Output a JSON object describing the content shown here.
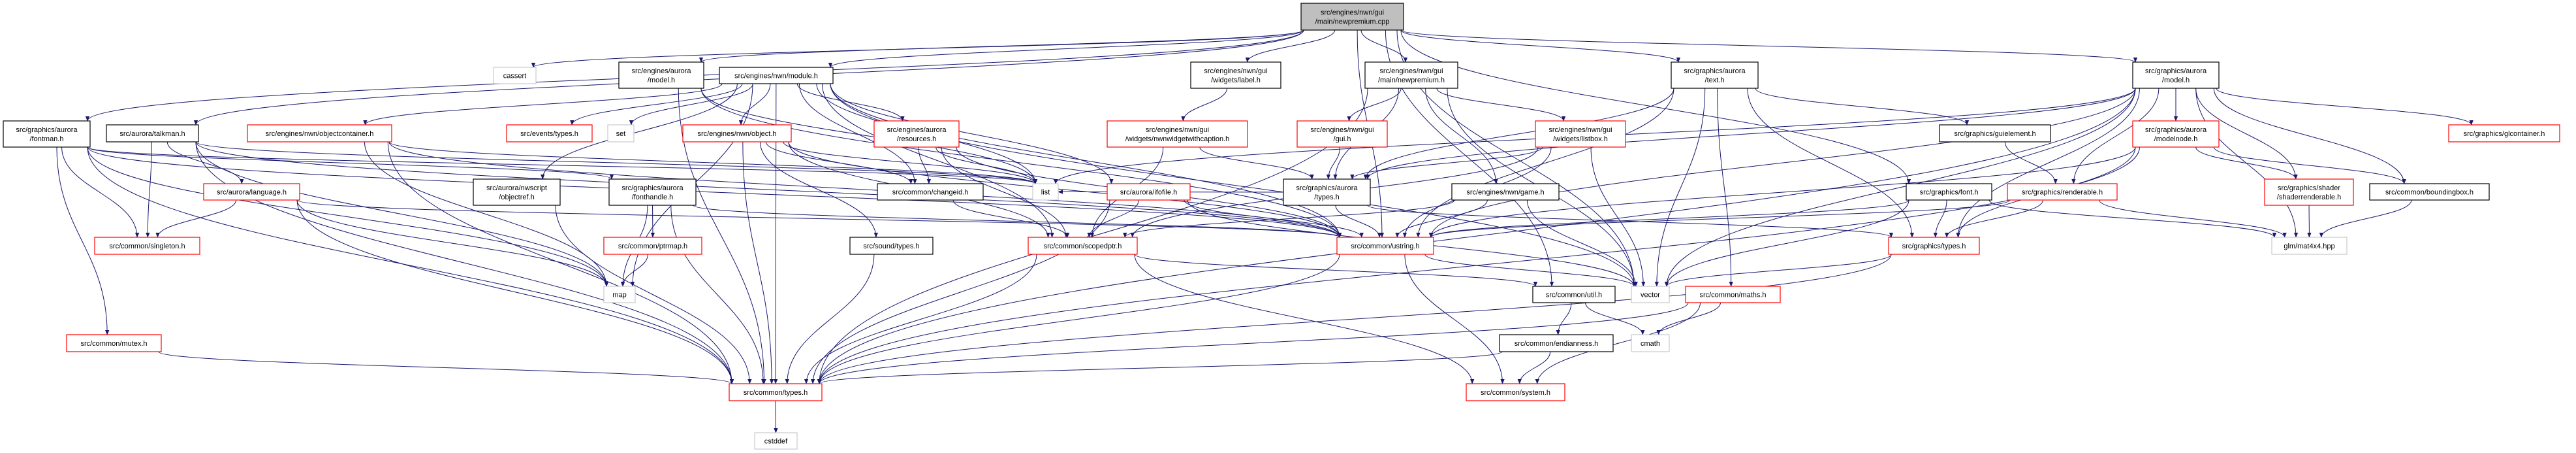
{
  "colors": {
    "edge": "#191970",
    "root_fill": "#bfbfbf",
    "normal_border": "#000000",
    "truncated_border": "#ff0000",
    "external_border": "#bfbfbf"
  },
  "nodes": [
    {
      "id": "cpp",
      "lines": [
        "src/engines/nwn/gui",
        "/main/newpremium.cpp"
      ],
      "kind": "root"
    },
    {
      "id": "cassert",
      "lines": [
        "cassert"
      ],
      "kind": "external"
    },
    {
      "id": "eng_model",
      "lines": [
        "src/engines/aurora",
        "/model.h"
      ],
      "kind": "normal"
    },
    {
      "id": "module",
      "lines": [
        "src/engines/nwn/module.h"
      ],
      "kind": "normal"
    },
    {
      "id": "label",
      "lines": [
        "src/engines/nwn/gui",
        "/widgets/label.h"
      ],
      "kind": "normal"
    },
    {
      "id": "newpremium_h",
      "lines": [
        "src/engines/nwn/gui",
        "/main/newpremium.h"
      ],
      "kind": "normal"
    },
    {
      "id": "text",
      "lines": [
        "src/graphics/aurora",
        "/text.h"
      ],
      "kind": "normal"
    },
    {
      "id": "gmodel",
      "lines": [
        "src/graphics/aurora",
        "/model.h"
      ],
      "kind": "normal"
    },
    {
      "id": "fontman",
      "lines": [
        "src/graphics/aurora",
        "/fontman.h"
      ],
      "kind": "normal"
    },
    {
      "id": "talkman",
      "lines": [
        "src/aurora/talkman.h"
      ],
      "kind": "normal"
    },
    {
      "id": "objectcontainer",
      "lines": [
        "src/engines/nwn/objectcontainer.h"
      ],
      "kind": "truncated"
    },
    {
      "id": "events_types",
      "lines": [
        "src/events/types.h"
      ],
      "kind": "truncated"
    },
    {
      "id": "set",
      "lines": [
        "set"
      ],
      "kind": "external"
    },
    {
      "id": "object",
      "lines": [
        "src/engines/nwn/object.h"
      ],
      "kind": "truncated"
    },
    {
      "id": "resources",
      "lines": [
        "src/engines/aurora",
        "/resources.h"
      ],
      "kind": "truncated"
    },
    {
      "id": "nwnwidget",
      "lines": [
        "src/engines/nwn/gui",
        "/widgets/nwnwidgetwithcaption.h"
      ],
      "kind": "truncated"
    },
    {
      "id": "gui",
      "lines": [
        "src/engines/nwn/gui",
        "/gui.h"
      ],
      "kind": "truncated"
    },
    {
      "id": "listbox",
      "lines": [
        "src/engines/nwn/gui",
        "/widgets/listbox.h"
      ],
      "kind": "truncated"
    },
    {
      "id": "guielement",
      "lines": [
        "src/graphics/guielement.h"
      ],
      "kind": "normal"
    },
    {
      "id": "modelnode",
      "lines": [
        "src/graphics/aurora",
        "/modelnode.h"
      ],
      "kind": "truncated"
    },
    {
      "id": "glcontainer",
      "lines": [
        "src/graphics/glcontainer.h"
      ],
      "kind": "truncated"
    },
    {
      "id": "language",
      "lines": [
        "src/aurora/language.h"
      ],
      "kind": "truncated"
    },
    {
      "id": "objectref",
      "lines": [
        "src/aurora/nwscript",
        "/objectref.h"
      ],
      "kind": "normal"
    },
    {
      "id": "fonthandle",
      "lines": [
        "src/graphics/aurora",
        "/fonthandle.h"
      ],
      "kind": "normal"
    },
    {
      "id": "changeid",
      "lines": [
        "src/common/changeid.h"
      ],
      "kind": "normal"
    },
    {
      "id": "list",
      "lines": [
        "list"
      ],
      "kind": "external"
    },
    {
      "id": "ifofile",
      "lines": [
        "src/aurora/ifofile.h"
      ],
      "kind": "truncated"
    },
    {
      "id": "gtypes",
      "lines": [
        "src/graphics/aurora",
        "/types.h"
      ],
      "kind": "normal"
    },
    {
      "id": "game",
      "lines": [
        "src/engines/nwn/game.h"
      ],
      "kind": "normal"
    },
    {
      "id": "font",
      "lines": [
        "src/graphics/font.h"
      ],
      "kind": "normal"
    },
    {
      "id": "renderable",
      "lines": [
        "src/graphics/renderable.h"
      ],
      "kind": "truncated"
    },
    {
      "id": "shaderrenderable",
      "lines": [
        "src/graphics/shader",
        "/shaderrenderable.h"
      ],
      "kind": "truncated"
    },
    {
      "id": "boundingbox",
      "lines": [
        "src/common/boundingbox.h"
      ],
      "kind": "normal"
    },
    {
      "id": "singleton",
      "lines": [
        "src/common/singleton.h"
      ],
      "kind": "truncated"
    },
    {
      "id": "ptrmap",
      "lines": [
        "src/common/ptrmap.h"
      ],
      "kind": "truncated"
    },
    {
      "id": "sound_types",
      "lines": [
        "src/sound/types.h"
      ],
      "kind": "normal"
    },
    {
      "id": "scopedptr",
      "lines": [
        "src/common/scopedptr.h"
      ],
      "kind": "truncated"
    },
    {
      "id": "ustring",
      "lines": [
        "src/common/ustring.h"
      ],
      "kind": "truncated"
    },
    {
      "id": "graphics_types",
      "lines": [
        "src/graphics/types.h"
      ],
      "kind": "truncated"
    },
    {
      "id": "mat4x4",
      "lines": [
        "glm/mat4x4.hpp"
      ],
      "kind": "external"
    },
    {
      "id": "map",
      "lines": [
        "map"
      ],
      "kind": "external"
    },
    {
      "id": "util",
      "lines": [
        "src/common/util.h"
      ],
      "kind": "normal"
    },
    {
      "id": "vector",
      "lines": [
        "vector"
      ],
      "kind": "external"
    },
    {
      "id": "maths",
      "lines": [
        "src/common/maths.h"
      ],
      "kind": "truncated"
    },
    {
      "id": "mutex",
      "lines": [
        "src/common/mutex.h"
      ],
      "kind": "truncated"
    },
    {
      "id": "endianness",
      "lines": [
        "src/common/endianness.h"
      ],
      "kind": "normal"
    },
    {
      "id": "cmath",
      "lines": [
        "cmath"
      ],
      "kind": "external"
    },
    {
      "id": "types",
      "lines": [
        "src/common/types.h"
      ],
      "kind": "truncated"
    },
    {
      "id": "system",
      "lines": [
        "src/common/system.h"
      ],
      "kind": "truncated"
    },
    {
      "id": "cstddef",
      "lines": [
        "cstddef"
      ],
      "kind": "external"
    }
  ],
  "edges": [
    [
      "cpp",
      "cassert"
    ],
    [
      "cpp",
      "eng_model"
    ],
    [
      "cpp",
      "fontman"
    ],
    [
      "cpp",
      "talkman"
    ],
    [
      "cpp",
      "module"
    ],
    [
      "cpp",
      "label"
    ],
    [
      "cpp",
      "newpremium_h"
    ],
    [
      "cpp",
      "text"
    ],
    [
      "cpp",
      "gmodel"
    ],
    [
      "cpp",
      "font"
    ],
    [
      "cpp",
      "ustring"
    ],
    [
      "cpp",
      "util"
    ],
    [
      "cpp",
      "vector"
    ],
    [
      "eng_model",
      "list"
    ],
    [
      "eng_model",
      "ustring"
    ],
    [
      "eng_model",
      "types"
    ],
    [
      "module",
      "object"
    ],
    [
      "module",
      "resources"
    ],
    [
      "module",
      "changeid"
    ],
    [
      "module",
      "list"
    ],
    [
      "module",
      "scopedptr"
    ],
    [
      "module",
      "ifofile"
    ],
    [
      "module",
      "ustring"
    ],
    [
      "module",
      "objectcontainer"
    ],
    [
      "module",
      "events_types"
    ],
    [
      "module",
      "set"
    ],
    [
      "module",
      "objectref"
    ],
    [
      "module",
      "map"
    ],
    [
      "module",
      "vector"
    ],
    [
      "module",
      "types"
    ],
    [
      "fontman",
      "singleton"
    ],
    [
      "fontman",
      "mutex"
    ],
    [
      "fontman",
      "map"
    ],
    [
      "fontman",
      "types"
    ],
    [
      "fontman",
      "ustring"
    ],
    [
      "fontman",
      "fonthandle"
    ],
    [
      "fontman",
      "list"
    ],
    [
      "talkman",
      "singleton"
    ],
    [
      "talkman",
      "language"
    ],
    [
      "talkman",
      "types"
    ],
    [
      "talkman",
      "map"
    ],
    [
      "talkman",
      "ustring"
    ],
    [
      "talkman",
      "list"
    ],
    [
      "language",
      "singleton"
    ],
    [
      "language",
      "map"
    ],
    [
      "language",
      "types"
    ],
    [
      "language",
      "ustring"
    ],
    [
      "objectcontainer",
      "map"
    ],
    [
      "objectcontainer",
      "list"
    ],
    [
      "objectcontainer",
      "types"
    ],
    [
      "objectcontainer",
      "ustring"
    ],
    [
      "objectref",
      "types"
    ],
    [
      "fonthandle",
      "ptrmap"
    ],
    [
      "fonthandle",
      "map"
    ],
    [
      "fonthandle",
      "types"
    ],
    [
      "fonthandle",
      "ustring"
    ],
    [
      "mutex",
      "types"
    ],
    [
      "object",
      "list"
    ],
    [
      "object",
      "sound_types"
    ],
    [
      "object",
      "scopedptr"
    ],
    [
      "object",
      "types"
    ],
    [
      "object",
      "ustring"
    ],
    [
      "object",
      "changeid"
    ],
    [
      "resources",
      "changeid"
    ],
    [
      "resources",
      "list"
    ],
    [
      "resources",
      "scopedptr"
    ],
    [
      "resources",
      "ustring"
    ],
    [
      "changeid",
      "scopedptr"
    ],
    [
      "ifofile",
      "scopedptr"
    ],
    [
      "ifofile",
      "types"
    ],
    [
      "ifofile",
      "ustring"
    ],
    [
      "ifofile",
      "vector"
    ],
    [
      "label",
      "nwnwidget"
    ],
    [
      "nwnwidget",
      "gtypes"
    ],
    [
      "nwnwidget",
      "scopedptr"
    ],
    [
      "newpremium_h",
      "gui"
    ],
    [
      "newpremium_h",
      "listbox"
    ],
    [
      "newpremium_h",
      "gtypes"
    ],
    [
      "newpremium_h",
      "game"
    ],
    [
      "newpremium_h",
      "vector"
    ],
    [
      "newpremium_h",
      "types"
    ],
    [
      "gui",
      "gtypes"
    ],
    [
      "listbox",
      "gtypes"
    ],
    [
      "listbox",
      "vector"
    ],
    [
      "listbox",
      "ustring"
    ],
    [
      "listbox",
      "scopedptr"
    ],
    [
      "game",
      "ustring"
    ],
    [
      "game",
      "vector"
    ],
    [
      "game",
      "scopedptr"
    ],
    [
      "gtypes",
      "ustring"
    ],
    [
      "gtypes",
      "graphics_types"
    ],
    [
      "gtypes",
      "list"
    ],
    [
      "text",
      "gtypes"
    ],
    [
      "text",
      "ustring"
    ],
    [
      "text",
      "guielement"
    ],
    [
      "text",
      "graphics_types"
    ],
    [
      "text",
      "maths"
    ],
    [
      "text",
      "vector"
    ],
    [
      "sound_types",
      "types"
    ],
    [
      "scopedptr",
      "types"
    ],
    [
      "scopedptr",
      "util"
    ],
    [
      "scopedptr",
      "system"
    ],
    [
      "ustring",
      "types"
    ],
    [
      "ustring",
      "system"
    ],
    [
      "ustring",
      "vector"
    ],
    [
      "util",
      "endianness"
    ],
    [
      "util",
      "cmath"
    ],
    [
      "endianness",
      "types"
    ],
    [
      "endianness",
      "system"
    ],
    [
      "maths",
      "cmath"
    ],
    [
      "maths",
      "system"
    ],
    [
      "maths",
      "types"
    ],
    [
      "guielement",
      "renderable"
    ],
    [
      "font",
      "graphics_types"
    ],
    [
      "font",
      "ustring"
    ],
    [
      "font",
      "mat4x4"
    ],
    [
      "font",
      "vector"
    ],
    [
      "renderable",
      "graphics_types"
    ],
    [
      "renderable",
      "mat4x4"
    ],
    [
      "renderable",
      "ustring"
    ],
    [
      "graphics_types",
      "types"
    ],
    [
      "graphics_types",
      "vector"
    ],
    [
      "gmodel",
      "modelnode"
    ],
    [
      "gmodel",
      "glcontainer"
    ],
    [
      "gmodel",
      "renderable"
    ],
    [
      "gmodel",
      "shaderrenderable"
    ],
    [
      "gmodel",
      "boundingbox"
    ],
    [
      "gmodel",
      "mat4x4"
    ],
    [
      "gmodel",
      "graphics_types"
    ],
    [
      "gmodel",
      "gtypes"
    ],
    [
      "gmodel",
      "ustring"
    ],
    [
      "gmodel",
      "list"
    ],
    [
      "gmodel",
      "vector"
    ],
    [
      "gmodel",
      "types"
    ],
    [
      "modelnode",
      "shaderrenderable"
    ],
    [
      "modelnode",
      "boundingbox"
    ],
    [
      "modelnode",
      "graphics_types"
    ],
    [
      "modelnode",
      "ustring"
    ],
    [
      "modelnode",
      "types"
    ],
    [
      "shaderrenderable",
      "mat4x4"
    ],
    [
      "boundingbox",
      "mat4x4"
    ],
    [
      "ptrmap",
      "map"
    ],
    [
      "types",
      "cstddef"
    ]
  ]
}
